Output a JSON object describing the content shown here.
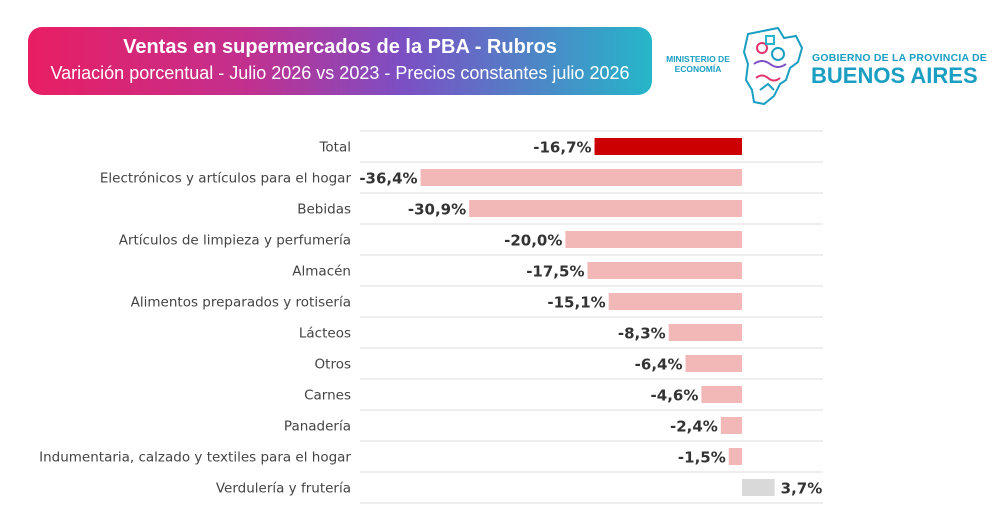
{
  "header": {
    "title": "Ventas en supermercados de la PBA - Rubros",
    "subtitle": "Variación porcentual - Julio 2026 vs 2023 - Precios constantes julio 2026"
  },
  "logo": {
    "ministerio_line1": "MINISTERIO DE",
    "ministerio_line2": "ECONOMÍA",
    "gobierno": "GOBIERNO DE LA PROVINCIA DE",
    "provincia": "BUENOS AIRES"
  },
  "colors": {
    "total_bar": "#cc0000",
    "negative_bar": "#f2b8b8",
    "positive_bar": "#d9d9d9",
    "brand": "#1a9ec2"
  },
  "chart_data": {
    "type": "bar",
    "orientation": "horizontal",
    "categories": [
      "Total",
      "Electrónicos y artículos para el hogar",
      "Bebidas",
      "Artículos de limpieza y perfumería",
      "Almacén",
      "Alimentos preparados y rotisería",
      "Lácteos",
      "Otros",
      "Carnes",
      "Panadería",
      "Indumentaria, calzado y textiles para el hogar",
      "Verdulería y frutería"
    ],
    "values": [
      -16.7,
      -36.4,
      -30.9,
      -20.0,
      -17.5,
      -15.1,
      -8.3,
      -6.4,
      -4.6,
      -2.4,
      -1.5,
      3.7
    ],
    "value_labels": [
      "-16,7%",
      "-36,4%",
      "-30,9%",
      "-20,0%",
      "-17,5%",
      "-15,1%",
      "-8,3%",
      "-6,4%",
      "-4,6%",
      "-2,4%",
      "-1,5%",
      "3,7%"
    ],
    "highlight": "Total",
    "xlim": [
      -40,
      10
    ],
    "grid": "horizontal separators"
  }
}
